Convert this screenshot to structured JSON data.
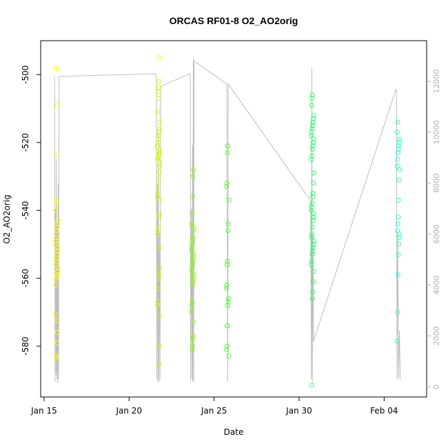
{
  "chart_data": {
    "type": "scatter",
    "title": "ORCAS RF01-8 O2_AO2orig",
    "xlabel": "Date",
    "ylabel": "O2_AO2orig",
    "x_ticks": [
      {
        "label": "Jan 15",
        "day": 15
      },
      {
        "label": "Jan 20",
        "day": 20
      },
      {
        "label": "Jan 25",
        "day": 25
      },
      {
        "label": "Jan 30",
        "day": 30
      },
      {
        "label": "Feb 04",
        "day": 35
      }
    ],
    "y_ticks": [
      -500,
      -520,
      -540,
      -560,
      -580
    ],
    "y2_ticks": [
      0,
      2000,
      4000,
      6000,
      8000,
      10000,
      12000
    ],
    "xlim_day": [
      14.8,
      37.5
    ],
    "ylim": [
      -595,
      -490
    ],
    "y2lim": [
      -400,
      13600
    ],
    "series_colors": [
      "#ffff00",
      "#ccff00",
      "#88ff00",
      "#44ff22",
      "#22ff66",
      "#00ffaa",
      "#22ffcc"
    ],
    "altitude_line_color": "#bdbdbd",
    "flights": [
      {
        "center_day": 15.75,
        "color": "#ffff00",
        "values": [
          -498,
          -498.5,
          -509,
          -523.5,
          -537,
          -538,
          -540,
          -543,
          -544,
          -545,
          -546,
          -548,
          -549,
          -550,
          -551,
          -552,
          -553,
          -554,
          -555,
          -556,
          -557,
          -558,
          -559,
          -559.5,
          -560,
          -562,
          -570.5,
          -572.5,
          -576,
          -579,
          -583,
          -583.5
        ]
      },
      {
        "center_day": 21.75,
        "color": "#ccff00",
        "values": [
          -495,
          -502,
          -504,
          -505,
          -507,
          -511,
          -514,
          -516,
          -517,
          -518,
          -519,
          -520,
          -521,
          -522,
          -523,
          -523.5,
          -524,
          -524.5,
          -525,
          -526,
          -527,
          -529,
          -531,
          -533,
          -535,
          -536,
          -537,
          -541,
          -542,
          -545,
          -546,
          -547,
          -551,
          -557,
          -559,
          -560,
          -563,
          -567,
          -568,
          -571,
          -580,
          -585.5
        ]
      },
      {
        "center_day": 23.75,
        "color": "#88ff00",
        "values": [
          -528,
          -530,
          -536,
          -541,
          -544,
          -545,
          -546,
          -548,
          -549,
          -550,
          -551,
          -552,
          -553,
          -554,
          -555,
          -556,
          -557,
          -558,
          -559,
          -560,
          -561,
          -562,
          -567,
          -568,
          -570,
          -573,
          -577,
          -578,
          -580,
          -581
        ]
      },
      {
        "center_day": 25.8,
        "color": "#44ff22",
        "values": [
          -521,
          -523,
          -532,
          -533,
          -537,
          -544,
          -546,
          -555,
          -556,
          -562,
          -563,
          -566,
          -567,
          -568,
          -574,
          -580,
          -581,
          -583
        ]
      },
      {
        "center_day": 30.8,
        "color": "#22ff66",
        "values": [
          -506,
          -507,
          -509,
          -512,
          -513,
          -514,
          -515,
          -516,
          -517,
          -518,
          -519,
          -520,
          -521,
          -522,
          -524,
          -525,
          -529,
          -532,
          -535,
          -536,
          -538,
          -539,
          -540,
          -541,
          -542,
          -543,
          -545,
          -547,
          -548,
          -549,
          -550,
          -551,
          -552,
          -553,
          -555,
          -556,
          -558,
          -561,
          -564,
          -566,
          -591.5
        ]
      },
      {
        "center_day": 35.85,
        "color": "#22ffcc",
        "values": [
          -514,
          -517,
          -519,
          -520,
          -521,
          -522,
          -523,
          -525,
          -527,
          -528,
          -531,
          -537,
          -542,
          -544,
          -546,
          -547,
          -548,
          -550,
          -553,
          -559,
          -570,
          -578.5
        ]
      }
    ],
    "altitude_track": [
      [
        15.6,
        12200
      ],
      [
        15.62,
        12100
      ],
      [
        15.65,
        200
      ],
      [
        15.68,
        7000
      ],
      [
        15.7,
        500
      ],
      [
        15.72,
        9000
      ],
      [
        15.75,
        300
      ],
      [
        15.78,
        6500
      ],
      [
        15.8,
        150
      ],
      [
        15.83,
        8000
      ],
      [
        15.85,
        300
      ],
      [
        15.88,
        12200
      ],
      [
        21.5,
        12300
      ],
      [
        21.6,
        12200
      ],
      [
        21.63,
        300
      ],
      [
        21.66,
        8000
      ],
      [
        21.7,
        200
      ],
      [
        21.72,
        10000
      ],
      [
        21.75,
        200
      ],
      [
        21.78,
        6000
      ],
      [
        21.82,
        300
      ],
      [
        21.85,
        11800
      ],
      [
        23.55,
        12300
      ],
      [
        23.6,
        12200
      ],
      [
        23.62,
        200
      ],
      [
        23.66,
        7000
      ],
      [
        23.7,
        300
      ],
      [
        23.73,
        9500
      ],
      [
        23.75,
        200
      ],
      [
        23.78,
        12900
      ],
      [
        23.8,
        200
      ],
      [
        23.82,
        12800
      ],
      [
        25.75,
        11900
      ],
      [
        25.8,
        200
      ],
      [
        25.83,
        11900
      ],
      [
        30.68,
        7300
      ],
      [
        30.72,
        300
      ],
      [
        30.75,
        12500
      ],
      [
        30.78,
        200
      ],
      [
        30.82,
        6000
      ],
      [
        30.85,
        1800
      ],
      [
        35.7,
        11700
      ],
      [
        35.73,
        11500
      ],
      [
        35.76,
        300
      ],
      [
        35.8,
        6000
      ],
      [
        35.85,
        300
      ],
      [
        35.9,
        2200
      ],
      [
        35.95,
        300
      ]
    ]
  }
}
